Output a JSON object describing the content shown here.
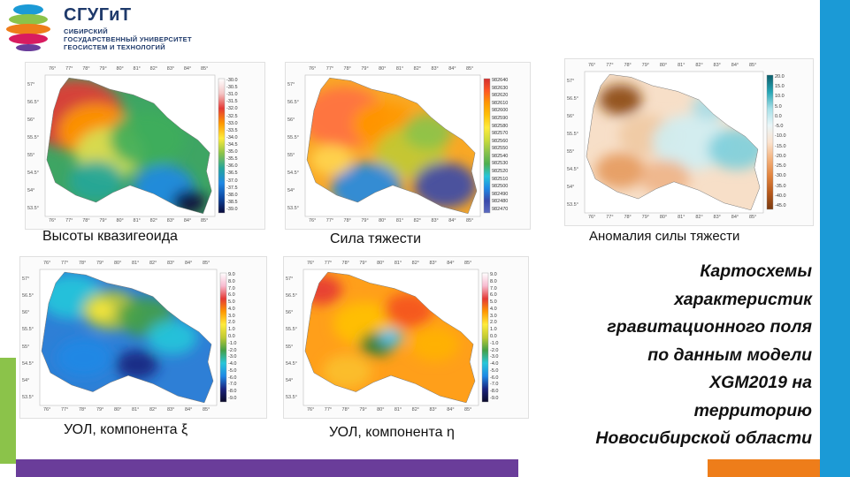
{
  "brand": {
    "name": "СГУГиТ",
    "lines": [
      "СИБИРСКИЙ",
      "ГОСУДАРСТВЕННЫЙ УНИВЕРСИТЕТ",
      "ГЕОСИСТЕМ И ТЕХНОЛОГИЙ"
    ]
  },
  "maps": [
    {
      "caption": "Высоты квазигеоида",
      "lon_ticks": [
        "76°",
        "77°",
        "78°",
        "79°",
        "80°",
        "81°",
        "82°",
        "83°",
        "84°",
        "85°"
      ],
      "lat_ticks": [
        "57°",
        "56.5°",
        "56°",
        "55.5°",
        "55°",
        "54.5°",
        "54°",
        "53.5°"
      ],
      "colorbar": [
        "-30.0",
        "-30.5",
        "-31.0",
        "-31.5",
        "-32.0",
        "-32.5",
        "-33.0",
        "-33.5",
        "-34.0",
        "-34.5",
        "-35.0",
        "-35.5",
        "-36.0",
        "-36.5",
        "-37.0",
        "-37.5",
        "-38.0",
        "-38.5",
        "-39.0"
      ]
    },
    {
      "caption": "Сила тяжести",
      "lon_ticks": [
        "76°",
        "77°",
        "78°",
        "79°",
        "80°",
        "81°",
        "82°",
        "83°",
        "84°",
        "85°"
      ],
      "lat_ticks": [
        "57°",
        "56.5°",
        "56°",
        "55.5°",
        "55°",
        "54.5°",
        "54°",
        "53.5°"
      ],
      "colorbar": [
        "982640",
        "982630",
        "982620",
        "982610",
        "982600",
        "982590",
        "982580",
        "982570",
        "982560",
        "982550",
        "982540",
        "982530",
        "982520",
        "982510",
        "982500",
        "982490",
        "982480",
        "982470"
      ]
    },
    {
      "caption": "Аномалия силы тяжести",
      "lon_ticks": [
        "76°",
        "77°",
        "78°",
        "79°",
        "80°",
        "81°",
        "82°",
        "83°",
        "84°",
        "85°"
      ],
      "lat_ticks": [
        "57°",
        "56.5°",
        "56°",
        "55.5°",
        "55°",
        "54.5°",
        "54°",
        "53.5°"
      ],
      "colorbar": [
        "20.0",
        "15.0",
        "10.0",
        "5.0",
        "0.0",
        "-5.0",
        "-10.0",
        "-15.0",
        "-20.0",
        "-25.0",
        "-30.0",
        "-35.0",
        "-40.0",
        "-45.0"
      ]
    },
    {
      "caption": "УОЛ, компонента ξ",
      "lon_ticks": [
        "76°",
        "77°",
        "78°",
        "79°",
        "80°",
        "81°",
        "82°",
        "83°",
        "84°",
        "85°"
      ],
      "lat_ticks": [
        "57°",
        "56.5°",
        "56°",
        "55.5°",
        "55°",
        "54.5°",
        "54°",
        "53.5°"
      ],
      "colorbar": [
        "9.0",
        "8.0",
        "7.0",
        "6.0",
        "5.0",
        "4.0",
        "3.0",
        "2.0",
        "1.0",
        "0.0",
        "-1.0",
        "-2.0",
        "-3.0",
        "-4.0",
        "-5.0",
        "-6.0",
        "-7.0",
        "-8.0",
        "-9.0"
      ]
    },
    {
      "caption": "УОЛ, компонента η",
      "lon_ticks": [
        "76°",
        "77°",
        "78°",
        "79°",
        "80°",
        "81°",
        "82°",
        "83°",
        "84°",
        "85°"
      ],
      "lat_ticks": [
        "57°",
        "56.5°",
        "56°",
        "55.5°",
        "55°",
        "54.5°",
        "54°",
        "53.5°"
      ],
      "colorbar": [
        "9.0",
        "8.0",
        "7.0",
        "6.0",
        "5.0",
        "4.0",
        "3.0",
        "2.0",
        "1.0",
        "0.0",
        "-1.0",
        "-2.0",
        "-3.0",
        "-4.0",
        "-5.0",
        "-6.0",
        "-7.0",
        "-8.0",
        "-9.0"
      ]
    }
  ],
  "title_lines": [
    "Картосхемы",
    "характеристик",
    "гравитационного поля",
    "по данным модели",
    "XGM2019 на",
    "территорию",
    "Новосибирской области"
  ],
  "colors": {
    "stripe_blue": "#1b9ad6",
    "stripe_green": "#8bc34a",
    "stripe_purple": "#6a3d9a",
    "stripe_orange": "#ee7d1a",
    "brand": "#1f3a6b"
  }
}
